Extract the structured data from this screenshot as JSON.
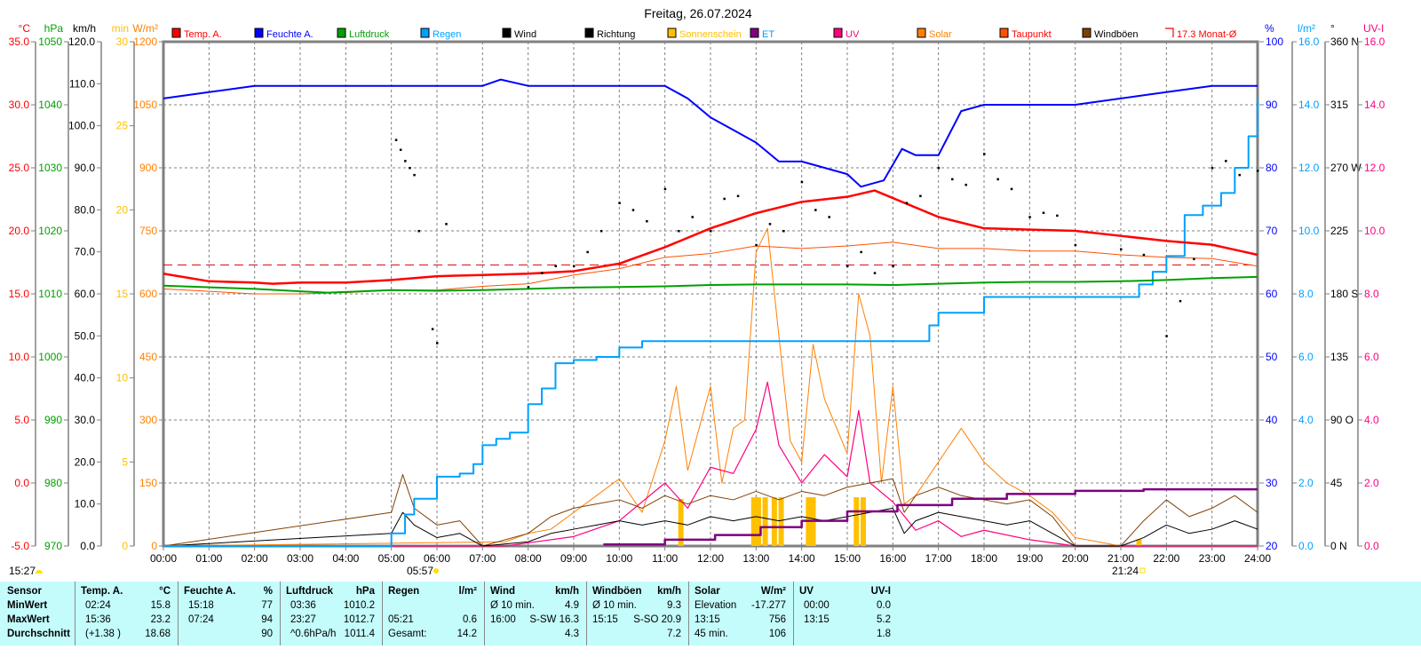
{
  "chart_data": {
    "type": "line",
    "title": "Freitag, 26.07.2024",
    "x_ticks": [
      "00:00",
      "01:00",
      "02:00",
      "03:00",
      "04:00",
      "05:00",
      "06:00",
      "07:00",
      "08:00",
      "09:00",
      "10:00",
      "11:00",
      "12:00",
      "13:00",
      "14:00",
      "15:00",
      "16:00",
      "17:00",
      "18:00",
      "19:00",
      "20:00",
      "21:00",
      "22:00",
      "23:00",
      "24:00"
    ],
    "xlim": [
      0,
      24
    ],
    "grid": true,
    "legend_position": "top",
    "axes": {
      "temp": {
        "unit": "°C",
        "color": "#ff0000",
        "range": [
          -5,
          35
        ],
        "ticks": [
          "35.0",
          "30.0",
          "25.0",
          "20.0",
          "15.0",
          "10.0",
          "5.0",
          "0.0",
          "-5.0"
        ]
      },
      "pressure": {
        "unit": "hPa",
        "color": "#00a000",
        "range": [
          970,
          1050
        ],
        "ticks": [
          "1050",
          "1040",
          "1030",
          "1020",
          "1010",
          "1000",
          "990",
          "980",
          "970"
        ]
      },
      "wind": {
        "unit": "km/h",
        "color": "#000000",
        "range": [
          0,
          120
        ],
        "ticks": [
          "120.0",
          "110.0",
          "100.0",
          "90.0",
          "80.0",
          "70.0",
          "60.0",
          "50.0",
          "40.0",
          "30.0",
          "20.0",
          "10.0",
          "0.0"
        ]
      },
      "sunshine": {
        "unit": "min",
        "color": "#ffc000",
        "range": [
          0,
          30
        ],
        "ticks": [
          "30",
          "25",
          "20",
          "15",
          "10",
          "5",
          "0"
        ]
      },
      "solar": {
        "unit": "W/m²",
        "color": "#ff8000",
        "range": [
          0,
          1200
        ],
        "ticks": [
          "1200",
          "1050",
          "900",
          "750",
          "600",
          "450",
          "300",
          "150",
          "0"
        ]
      },
      "humidity": {
        "unit": "%",
        "color": "#0000ff",
        "range": [
          20,
          100
        ],
        "ticks": [
          "100",
          "90",
          "80",
          "70",
          "60",
          "50",
          "40",
          "30",
          "20"
        ]
      },
      "rain": {
        "unit": "l/m²",
        "color": "#00a0ff",
        "range": [
          0,
          16
        ],
        "ticks": [
          "16.0",
          "14.0",
          "12.0",
          "10.0",
          "8.0",
          "6.0",
          "4.0",
          "2.0",
          "0.0"
        ]
      },
      "direction": {
        "unit": "°",
        "color": "#000000",
        "range": [
          0,
          360
        ],
        "ticks": [
          "360 N",
          "315",
          "270 W",
          "225",
          "180 S",
          "135",
          "90 O",
          "45",
          "0 N"
        ]
      },
      "uv": {
        "unit": "UV-I",
        "color": "#ff0080",
        "range": [
          0,
          16
        ],
        "ticks": [
          "16.0",
          "14.0",
          "12.0",
          "10.0",
          "8.0",
          "6.0",
          "4.0",
          "2.0",
          "0.0"
        ]
      }
    },
    "legend": [
      {
        "label": "Temp. A.",
        "color": "#ff0000",
        "text_color": "#ff0000"
      },
      {
        "label": "Feuchte A.",
        "color": "#0000ff",
        "text_color": "#0000ff"
      },
      {
        "label": "Luftdruck",
        "color": "#00a000",
        "text_color": "#00a000"
      },
      {
        "label": "Regen",
        "color": "#00a0ff",
        "text_color": "#00a0ff"
      },
      {
        "label": "Wind",
        "color": "#000000",
        "text_color": "#000000"
      },
      {
        "label": "Richtung",
        "color": "#000000",
        "text_color": "#000000"
      },
      {
        "label": "Sonnenschein",
        "color": "#ffc000",
        "text_color": "#ffc000"
      },
      {
        "label": "ET",
        "color": "#800080",
        "text_color": "#00a0ff"
      },
      {
        "label": "UV",
        "color": "#ff0080",
        "text_color": "#ff0080"
      },
      {
        "label": "Solar",
        "color": "#ff8000",
        "text_color": "#ff8000"
      },
      {
        "label": "Taupunkt",
        "color": "#ff5000",
        "text_color": "#ff0000"
      },
      {
        "label": "Windböen",
        "color": "#804000",
        "text_color": "#000000"
      },
      {
        "label": "17.3 Monat-Ø",
        "color": "#ff0000",
        "text_color": "#ff0000"
      }
    ],
    "month_avg_temp": 17.3,
    "series": [
      {
        "name": "Temp. A.",
        "axis": "temp",
        "color": "#ff0000",
        "width": 2.5,
        "x": [
          0,
          1,
          2,
          2.4,
          3,
          4,
          5,
          6,
          7,
          8,
          9,
          10,
          11,
          12,
          13,
          14,
          15,
          15.6,
          16,
          17,
          18,
          19,
          20,
          21,
          22,
          23,
          24
        ],
        "y": [
          16.6,
          16.0,
          15.9,
          15.8,
          15.9,
          15.9,
          16.1,
          16.4,
          16.5,
          16.6,
          16.8,
          17.4,
          18.7,
          20.2,
          21.4,
          22.3,
          22.7,
          23.2,
          22.6,
          21.1,
          20.2,
          20.1,
          20.0,
          19.6,
          19.2,
          18.9,
          18.1
        ]
      },
      {
        "name": "Taupunkt",
        "axis": "temp",
        "color": "#ff5000",
        "width": 1,
        "x": [
          0,
          1,
          2,
          3,
          4,
          5,
          6,
          7,
          8,
          9,
          10,
          11,
          12,
          13,
          14,
          15,
          16,
          17,
          18,
          19,
          20,
          21,
          22,
          23,
          24
        ],
        "y": [
          15.4,
          15.2,
          15.0,
          15.0,
          15.1,
          15.3,
          15.3,
          15.6,
          15.8,
          16.5,
          17.0,
          17.9,
          18.2,
          18.8,
          18.6,
          18.8,
          19.1,
          18.6,
          18.6,
          18.4,
          18.4,
          18.1,
          17.9,
          17.8,
          17.2
        ]
      },
      {
        "name": "Feuchte A.",
        "axis": "humidity",
        "color": "#0000ff",
        "width": 2,
        "x": [
          0,
          1,
          2,
          3,
          5,
          6,
          7,
          7.4,
          8,
          10,
          11,
          11.5,
          12,
          12.5,
          13,
          13.5,
          14,
          14.5,
          15,
          15.3,
          15.8,
          16.2,
          16.5,
          17,
          17.5,
          18,
          19,
          20,
          21,
          22,
          23,
          24
        ],
        "y": [
          91,
          92,
          93,
          93,
          93,
          93,
          93,
          94,
          93,
          93,
          93,
          91,
          88,
          86,
          84,
          81,
          81,
          80,
          79,
          77,
          78,
          83,
          82,
          82,
          89,
          90,
          90,
          90,
          91,
          92,
          93,
          93
        ]
      },
      {
        "name": "Luftdruck",
        "axis": "pressure",
        "color": "#00a000",
        "width": 2,
        "x": [
          0,
          2,
          3,
          3.6,
          4,
          5,
          6,
          7,
          8,
          9,
          10,
          11,
          12,
          13,
          14,
          15,
          16,
          17,
          18,
          19,
          20,
          21,
          22,
          23,
          24
        ],
        "y": [
          1011.3,
          1010.8,
          1010.4,
          1010.2,
          1010.3,
          1010.6,
          1010.5,
          1010.6,
          1010.8,
          1011.0,
          1011.1,
          1011.2,
          1011.4,
          1011.5,
          1011.5,
          1011.5,
          1011.4,
          1011.6,
          1011.8,
          1011.9,
          1011.9,
          1012.0,
          1012.2,
          1012.5,
          1012.7
        ]
      },
      {
        "name": "Regen",
        "axis": "rain",
        "color": "#00a0ff",
        "width": 2,
        "step": true,
        "x": [
          0,
          5.0,
          5.3,
          5.5,
          6.0,
          6.5,
          6.8,
          7.0,
          7.3,
          7.6,
          8.0,
          8.3,
          8.6,
          9.0,
          9.5,
          10.0,
          10.5,
          16.5,
          16.8,
          17.0,
          18.0,
          21.0,
          21.4,
          21.7,
          22.0,
          22.4,
          22.8,
          23.2,
          23.5,
          23.8,
          24
        ],
        "y": [
          0,
          0.4,
          1.0,
          1.5,
          2.2,
          2.3,
          2.6,
          3.2,
          3.4,
          3.6,
          4.5,
          5.0,
          5.8,
          5.9,
          6.0,
          6.3,
          6.5,
          6.5,
          7.0,
          7.4,
          7.9,
          7.9,
          8.3,
          8.7,
          9.2,
          10.5,
          10.8,
          11.2,
          12.0,
          13.0,
          14.2
        ]
      },
      {
        "name": "ET",
        "axis": "rain",
        "color": "#800080",
        "width": 2.5,
        "step": true,
        "x": [
          9.65,
          11.0,
          12.1,
          13.1,
          14.0,
          15.0,
          16.1,
          17.3,
          18.5,
          20.0,
          21.5,
          24
        ],
        "y": [
          0.05,
          0.2,
          0.35,
          0.6,
          0.8,
          1.1,
          1.3,
          1.5,
          1.65,
          1.75,
          1.8,
          1.8
        ]
      },
      {
        "name": "Solar",
        "axis": "solar",
        "color": "#ff8000",
        "width": 1,
        "x": [
          0,
          7.5,
          8,
          8.5,
          9,
          9.5,
          10,
          10.5,
          11,
          11.25,
          11.5,
          12,
          12.25,
          12.5,
          12.75,
          13,
          13.25,
          13.5,
          13.75,
          14,
          14.25,
          14.5,
          15,
          15.25,
          15.5,
          15.75,
          16,
          16.25,
          16.5,
          17,
          17.5,
          18,
          18.5,
          19,
          19.5,
          20,
          20.5,
          21,
          24
        ],
        "y": [
          0,
          10,
          30,
          40,
          80,
          120,
          160,
          80,
          250,
          380,
          180,
          380,
          150,
          280,
          300,
          700,
          756,
          500,
          250,
          200,
          480,
          350,
          220,
          600,
          500,
          150,
          380,
          100,
          120,
          200,
          280,
          200,
          150,
          120,
          80,
          20,
          10,
          0,
          0
        ]
      },
      {
        "name": "UV",
        "axis": "uv",
        "color": "#ff0080",
        "width": 1.2,
        "x": [
          0,
          7.5,
          8,
          9,
          10,
          11,
          11.5,
          12,
          12.5,
          13,
          13.25,
          13.5,
          14,
          14.5,
          15,
          15.25,
          15.5,
          16,
          16.5,
          17,
          17.5,
          18,
          19,
          20,
          24
        ],
        "y": [
          0,
          0,
          0.1,
          0.3,
          0.8,
          2.0,
          1.2,
          2.5,
          2.3,
          3.7,
          5.2,
          3.2,
          2.0,
          2.9,
          2.2,
          4.3,
          2.0,
          1.4,
          0.5,
          0.8,
          0.3,
          0.5,
          0.2,
          0,
          0
        ]
      },
      {
        "name": "Windböen",
        "axis": "wind",
        "color": "#804000",
        "width": 1,
        "x": [
          0,
          5.0,
          5.25,
          5.5,
          6.0,
          6.5,
          7,
          8,
          8.5,
          9,
          9.5,
          10,
          10.5,
          11,
          11.5,
          12,
          12.5,
          13,
          13.5,
          14,
          14.5,
          15,
          15.5,
          16,
          16.25,
          16.5,
          17,
          17.5,
          18,
          18.5,
          19,
          19.5,
          20,
          21,
          21.5,
          22,
          22.5,
          23,
          23.5,
          24
        ],
        "y": [
          0,
          8,
          17,
          9,
          5,
          6,
          0,
          3,
          7,
          9,
          10,
          11,
          9,
          12,
          10,
          12,
          11,
          13,
          11,
          13,
          12,
          14,
          15,
          16,
          8,
          12,
          14,
          12,
          11,
          10,
          11,
          7,
          0,
          0,
          6,
          11,
          7,
          9,
          12,
          8
        ]
      },
      {
        "name": "Wind",
        "axis": "wind",
        "color": "#000000",
        "width": 1,
        "x": [
          0,
          5.0,
          5.25,
          5.5,
          6.0,
          6.5,
          7,
          8,
          8.5,
          9,
          9.5,
          10,
          10.5,
          11,
          11.5,
          12,
          12.5,
          13,
          13.5,
          14,
          14.5,
          15,
          15.5,
          16,
          16.25,
          16.5,
          17,
          17.5,
          18,
          18.5,
          19,
          19.5,
          20,
          21,
          21.5,
          22,
          22.5,
          23,
          23.5,
          24
        ],
        "y": [
          0,
          3,
          8,
          5,
          2,
          3,
          0,
          1,
          3,
          4,
          5,
          6,
          5,
          6,
          5,
          7,
          6,
          7,
          6,
          7,
          6,
          7,
          8,
          9,
          3,
          6,
          8,
          7,
          6,
          5,
          6,
          3,
          0,
          0,
          2,
          5,
          3,
          4,
          6,
          4
        ]
      }
    ],
    "sunshine_bars": {
      "name": "Sonnenschein",
      "axis": "sunshine",
      "color": "#ffc000",
      "x": [
        11.35,
        12.95,
        13.05,
        13.2,
        13.4,
        13.55,
        14.15,
        14.25,
        15.2,
        15.35,
        21.4
      ],
      "y": [
        2.8,
        2.9,
        2.9,
        2.9,
        2.9,
        2.9,
        2.9,
        2.9,
        2.9,
        2.9,
        0.4
      ]
    },
    "direction_points": {
      "name": "Richtung",
      "axis": "direction",
      "color": "#000000",
      "x": [
        5.1,
        5.2,
        5.3,
        5.4,
        5.5,
        5.6,
        5.9,
        6.0,
        6.2,
        8.0,
        8.3,
        8.6,
        9.0,
        9.3,
        9.6,
        10.0,
        10.3,
        10.6,
        11.0,
        11.3,
        11.6,
        12.0,
        12.3,
        12.6,
        13.0,
        13.3,
        13.6,
        14.0,
        14.3,
        14.6,
        15.0,
        15.3,
        15.6,
        16.0,
        16.3,
        16.6,
        17.0,
        17.3,
        17.6,
        18.0,
        18.3,
        18.6,
        19.0,
        19.3,
        19.6,
        20.0,
        21.0,
        21.5,
        22.0,
        22.3,
        22.6,
        23.0,
        23.3,
        23.6,
        24.0
      ],
      "y": [
        290,
        283,
        275,
        270,
        265,
        225,
        155,
        145,
        230,
        185,
        195,
        200,
        200,
        210,
        225,
        245,
        240,
        232,
        255,
        225,
        235,
        225,
        248,
        250,
        215,
        230,
        225,
        260,
        240,
        235,
        200,
        210,
        195,
        200,
        245,
        250,
        270,
        262,
        258,
        280,
        262,
        255,
        235,
        238,
        236,
        215,
        212,
        208,
        150,
        175,
        205,
        270,
        275,
        265,
        268
      ]
    }
  },
  "sun": {
    "moon_time": "15:27",
    "sunrise": "05:57",
    "sunset": "21:24"
  },
  "table": {
    "sensor": {
      "header": "Sensor",
      "rows": [
        "MinWert",
        "MaxWert",
        "Durchschnitt"
      ]
    },
    "columns": [
      {
        "title": "Temp. A.",
        "unit": "°C",
        "rows": [
          [
            "02:24",
            "15.8"
          ],
          [
            "15:36",
            "23.2"
          ],
          [
            "(+1.38 )",
            "18.68"
          ]
        ]
      },
      {
        "title": "Feuchte A.",
        "unit": "%",
        "rows": [
          [
            "15:18",
            "77"
          ],
          [
            "07:24",
            "94"
          ],
          [
            "",
            "90"
          ]
        ]
      },
      {
        "title": "Luftdruck",
        "unit": "hPa",
        "rows": [
          [
            "03:36",
            "1010.2"
          ],
          [
            "23:27",
            "1012.7"
          ],
          [
            "^0.6hPa/h",
            "1011.4"
          ]
        ]
      },
      {
        "title": "Regen",
        "unit": "l/m²",
        "rows": [
          [
            "",
            ""
          ],
          [
            "05:21",
            "0.6"
          ],
          [
            "Gesamt:",
            "14.2"
          ]
        ]
      },
      {
        "title": "Wind",
        "unit": "km/h",
        "rows": [
          [
            "Ø 10 min.",
            "4.9"
          ],
          [
            "16:00",
            "S-SW 16.3"
          ],
          [
            "",
            "4.3"
          ]
        ]
      },
      {
        "title": "Windböen",
        "unit": "km/h",
        "rows": [
          [
            "Ø 10 min.",
            "9.3"
          ],
          [
            "15:15",
            "S-SO 20.9"
          ],
          [
            "",
            "7.2"
          ]
        ]
      },
      {
        "title": "Solar",
        "unit": "W/m²",
        "rows": [
          [
            "Elevation",
            "-17.277"
          ],
          [
            "13:15",
            "756"
          ],
          [
            "45 min.",
            "106"
          ]
        ]
      },
      {
        "title": "UV",
        "unit": "UV-I",
        "rows": [
          [
            "00:00",
            "0.0"
          ],
          [
            "13:15",
            "5.2"
          ],
          [
            "",
            "1.8"
          ]
        ]
      }
    ]
  }
}
